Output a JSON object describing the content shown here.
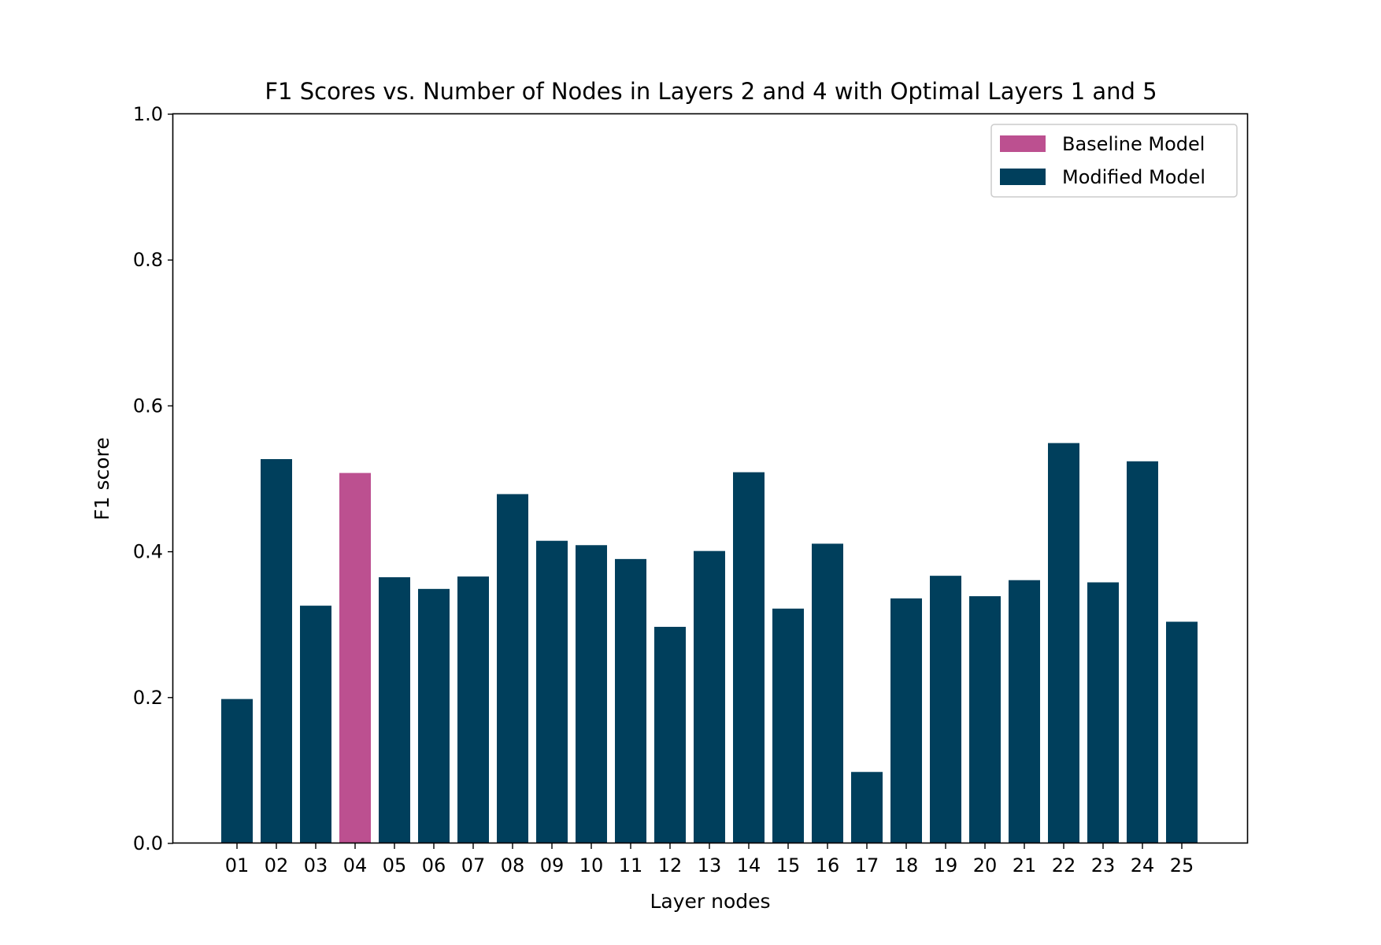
{
  "chart_data": {
    "type": "bar",
    "title": "F1 Scores vs. Number of Nodes in Layers 2 and 4 with Optimal Layers 1 and 5",
    "xlabel": "Layer nodes",
    "ylabel": "F1 score",
    "ylim": [
      0,
      1.0
    ],
    "yticks": [
      "0.0",
      "0.2",
      "0.4",
      "0.6",
      "0.8",
      "1.0"
    ],
    "categories": [
      "01",
      "02",
      "03",
      "04",
      "05",
      "06",
      "07",
      "08",
      "09",
      "10",
      "11",
      "12",
      "13",
      "14",
      "15",
      "16",
      "17",
      "18",
      "19",
      "20",
      "21",
      "22",
      "23",
      "24",
      "25"
    ],
    "values": [
      0.198,
      0.527,
      0.326,
      0.508,
      0.365,
      0.349,
      0.366,
      0.479,
      0.415,
      0.409,
      0.39,
      0.297,
      0.401,
      0.509,
      0.322,
      0.411,
      0.098,
      0.336,
      0.367,
      0.339,
      0.361,
      0.549,
      0.358,
      0.524,
      0.304
    ],
    "bar_series": [
      "modified",
      "modified",
      "modified",
      "baseline",
      "modified",
      "modified",
      "modified",
      "modified",
      "modified",
      "modified",
      "modified",
      "modified",
      "modified",
      "modified",
      "modified",
      "modified",
      "modified",
      "modified",
      "modified",
      "modified",
      "modified",
      "modified",
      "modified",
      "modified",
      "modified"
    ],
    "legend": {
      "position": "top-right",
      "entries": [
        {
          "key": "baseline",
          "label": "Baseline Model",
          "color": "#bc5090"
        },
        {
          "key": "modified",
          "label": "Modified Model",
          "color": "#003f5c"
        }
      ]
    },
    "grid": false
  }
}
